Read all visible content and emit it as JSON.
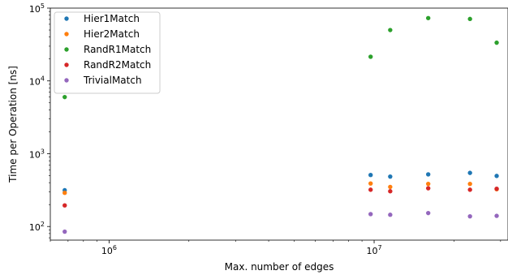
{
  "chart_data": {
    "type": "scatter",
    "xscale": "log",
    "yscale": "log",
    "xlabel": "Max. number of edges",
    "ylabel": "Time per Operation [ns]",
    "xlim": [
      600000,
      32000000
    ],
    "ylim": [
      65,
      100000
    ],
    "x_ticks": [
      {
        "value": 1000000,
        "base": "10",
        "exp": "6"
      },
      {
        "value": 10000000,
        "base": "10",
        "exp": "7"
      }
    ],
    "y_ticks": [
      {
        "value": 100,
        "base": "10",
        "exp": "2"
      },
      {
        "value": 1000,
        "base": "10",
        "exp": "3"
      },
      {
        "value": 10000,
        "base": "10",
        "exp": "4"
      },
      {
        "value": 100000,
        "base": "10",
        "exp": "5"
      }
    ],
    "legend_position": "top-left",
    "x": [
      680000,
      9700000,
      11500000,
      16000000,
      23000000,
      29000000
    ],
    "series": [
      {
        "name": "Hier1Match",
        "color": "#1f77b4",
        "values": [
          315,
          510,
          485,
          520,
          545,
          495
        ]
      },
      {
        "name": "Hier2Match",
        "color": "#ff7f0e",
        "values": [
          290,
          390,
          350,
          385,
          385,
          325
        ]
      },
      {
        "name": "RandR1Match",
        "color": "#2ca02c",
        "values": [
          6000,
          21500,
          50000,
          73000,
          71000,
          33500
        ]
      },
      {
        "name": "RandR2Match",
        "color": "#d62728",
        "values": [
          195,
          320,
          305,
          335,
          320,
          330
        ]
      },
      {
        "name": "TrivialMatch",
        "color": "#9467bd",
        "values": [
          85,
          148,
          145,
          153,
          138,
          140
        ]
      }
    ]
  }
}
